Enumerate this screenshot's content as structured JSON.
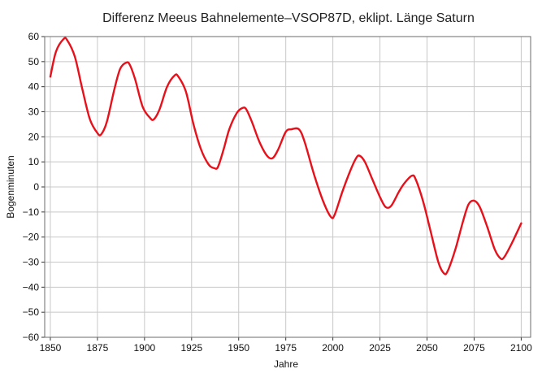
{
  "chart_data": {
    "type": "line",
    "title": "Differenz Meeus Bahnelemente–VSOP87D, eklipt. Länge Saturn",
    "xlabel": "Jahre",
    "ylabel": "Bogenminuten",
    "xlim": [
      1847,
      2105
    ],
    "ylim": [
      -60,
      60
    ],
    "xticks": [
      1850,
      1875,
      1900,
      1925,
      1950,
      1975,
      2000,
      2025,
      2050,
      2075,
      2100
    ],
    "yticks": [
      60,
      50,
      40,
      30,
      20,
      10,
      0,
      -10,
      -20,
      -30,
      -40,
      -50,
      -60
    ],
    "grid": true,
    "series": [
      {
        "color": "#e8101a",
        "points": [
          [
            1850,
            44
          ],
          [
            1853,
            54
          ],
          [
            1857,
            59
          ],
          [
            1859,
            58.5
          ],
          [
            1863,
            52
          ],
          [
            1867,
            39
          ],
          [
            1871,
            27
          ],
          [
            1875,
            21.5
          ],
          [
            1877,
            21
          ],
          [
            1880,
            26
          ],
          [
            1884,
            39
          ],
          [
            1887,
            47
          ],
          [
            1890,
            49.5
          ],
          [
            1892,
            49
          ],
          [
            1895,
            43
          ],
          [
            1899,
            32
          ],
          [
            1903,
            27.5
          ],
          [
            1905,
            27
          ],
          [
            1908,
            31
          ],
          [
            1912,
            40
          ],
          [
            1916,
            44.5
          ],
          [
            1918,
            44
          ],
          [
            1922,
            38
          ],
          [
            1926,
            25
          ],
          [
            1930,
            15
          ],
          [
            1934,
            9
          ],
          [
            1937,
            7.5
          ],
          [
            1939,
            8
          ],
          [
            1942,
            15
          ],
          [
            1945,
            23
          ],
          [
            1949,
            29.5
          ],
          [
            1952,
            31.5
          ],
          [
            1954,
            31
          ],
          [
            1957,
            26
          ],
          [
            1961,
            18
          ],
          [
            1965,
            12.5
          ],
          [
            1968,
            11.5
          ],
          [
            1971,
            15
          ],
          [
            1975,
            22
          ],
          [
            1978,
            23
          ],
          [
            1982,
            23
          ],
          [
            1985,
            18
          ],
          [
            1990,
            5
          ],
          [
            1995,
            -6
          ],
          [
            1999,
            -12
          ],
          [
            2001,
            -11
          ],
          [
            2005,
            -2
          ],
          [
            2009,
            6
          ],
          [
            2012,
            11
          ],
          [
            2014,
            12.5
          ],
          [
            2017,
            10
          ],
          [
            2021,
            3
          ],
          [
            2025,
            -4
          ],
          [
            2028,
            -8
          ],
          [
            2031,
            -7.5
          ],
          [
            2035,
            -2
          ],
          [
            2038,
            1.5
          ],
          [
            2042,
            4.5
          ],
          [
            2044,
            3
          ],
          [
            2048,
            -6
          ],
          [
            2052,
            -18
          ],
          [
            2056,
            -30
          ],
          [
            2059,
            -34.5
          ],
          [
            2061,
            -33.5
          ],
          [
            2065,
            -25
          ],
          [
            2069,
            -14
          ],
          [
            2072,
            -7
          ],
          [
            2075,
            -5.5
          ],
          [
            2078,
            -8
          ],
          [
            2082,
            -16
          ],
          [
            2086,
            -25
          ],
          [
            2089,
            -28.5
          ],
          [
            2091,
            -28
          ],
          [
            2095,
            -22.5
          ],
          [
            2100,
            -14.5
          ]
        ]
      }
    ]
  }
}
